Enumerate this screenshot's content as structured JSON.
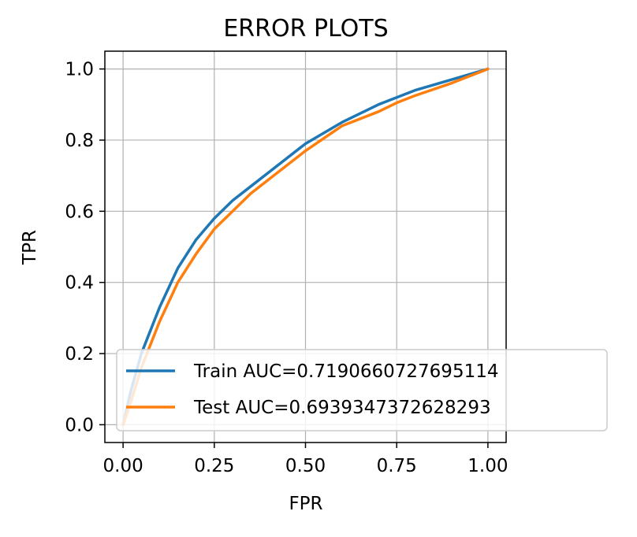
{
  "chart_data": {
    "type": "line",
    "title": "ERROR PLOTS",
    "xlabel": "FPR",
    "ylabel": "TPR",
    "xlim": [
      -0.05,
      1.05
    ],
    "ylim": [
      -0.05,
      1.05
    ],
    "xticks": [
      0.0,
      0.25,
      0.5,
      0.75,
      1.0
    ],
    "xtick_labels": [
      "0.00",
      "0.25",
      "0.50",
      "0.75",
      "1.00"
    ],
    "yticks": [
      0.0,
      0.2,
      0.4,
      0.6,
      0.8,
      1.0
    ],
    "ytick_labels": [
      "0.0",
      "0.2",
      "0.4",
      "0.6",
      "0.8",
      "1.0"
    ],
    "grid": true,
    "legend_position": "lower-right",
    "series": [
      {
        "name": "Train AUC=0.7190660727695114",
        "color": "#1f77b4",
        "x": [
          0.0,
          0.02,
          0.05,
          0.1,
          0.15,
          0.2,
          0.25,
          0.3,
          0.35,
          0.4,
          0.5,
          0.6,
          0.7,
          0.75,
          0.8,
          0.9,
          1.0
        ],
        "y": [
          0.0,
          0.09,
          0.2,
          0.33,
          0.44,
          0.52,
          0.58,
          0.63,
          0.67,
          0.71,
          0.79,
          0.85,
          0.9,
          0.92,
          0.94,
          0.97,
          1.0
        ]
      },
      {
        "name": "Test AUC=0.6939347372628293",
        "color": "#ff7f0e",
        "x": [
          0.0,
          0.02,
          0.05,
          0.1,
          0.15,
          0.2,
          0.25,
          0.3,
          0.35,
          0.4,
          0.5,
          0.6,
          0.7,
          0.75,
          0.8,
          0.9,
          1.0
        ],
        "y": [
          0.0,
          0.06,
          0.16,
          0.29,
          0.4,
          0.48,
          0.55,
          0.6,
          0.65,
          0.69,
          0.77,
          0.84,
          0.88,
          0.905,
          0.925,
          0.96,
          1.0
        ]
      }
    ]
  }
}
